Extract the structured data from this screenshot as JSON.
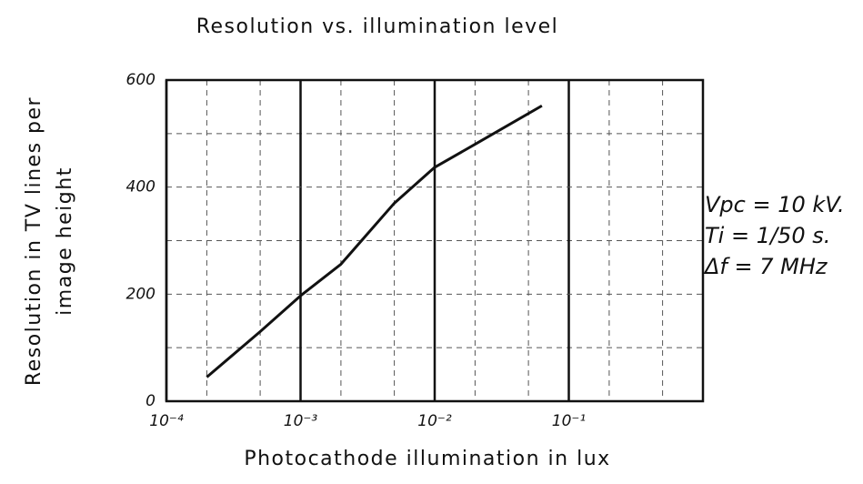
{
  "chart_data": {
    "type": "line",
    "title": "Resolution vs. illumination level",
    "xlabel": "Photocathode illumination in lux",
    "ylabel": [
      "Resolution in TV lines per",
      "image height"
    ],
    "xscale": "log",
    "x": [
      0.0002,
      0.0005,
      0.001,
      0.002,
      0.005,
      0.01,
      0.02,
      0.063
    ],
    "series": [
      {
        "name": null,
        "color": "#111111",
        "values": [
          45,
          130,
          197,
          256,
          370,
          437,
          480,
          552
        ]
      }
    ],
    "xlim": [
      0.0001,
      1
    ],
    "ylim": [
      0,
      600
    ],
    "xticks": [
      {
        "value": 0.0001,
        "label": "10⁻⁴"
      },
      {
        "value": 0.001,
        "label": "10⁻³"
      },
      {
        "value": 0.01,
        "label": "10⁻²"
      },
      {
        "value": 0.1,
        "label": "10⁻¹"
      }
    ],
    "xminorticks": [
      0.0002,
      0.0005,
      0.002,
      0.005,
      0.02,
      0.05,
      0.2,
      0.5
    ],
    "yticks": [
      0,
      200,
      400,
      600
    ],
    "yminorticks": [
      100,
      300,
      500
    ],
    "grid": true,
    "annotations": [
      "Vpc = 10 kV.",
      "Ti = 1/50 s.",
      "Δf = 7 MHz"
    ]
  }
}
